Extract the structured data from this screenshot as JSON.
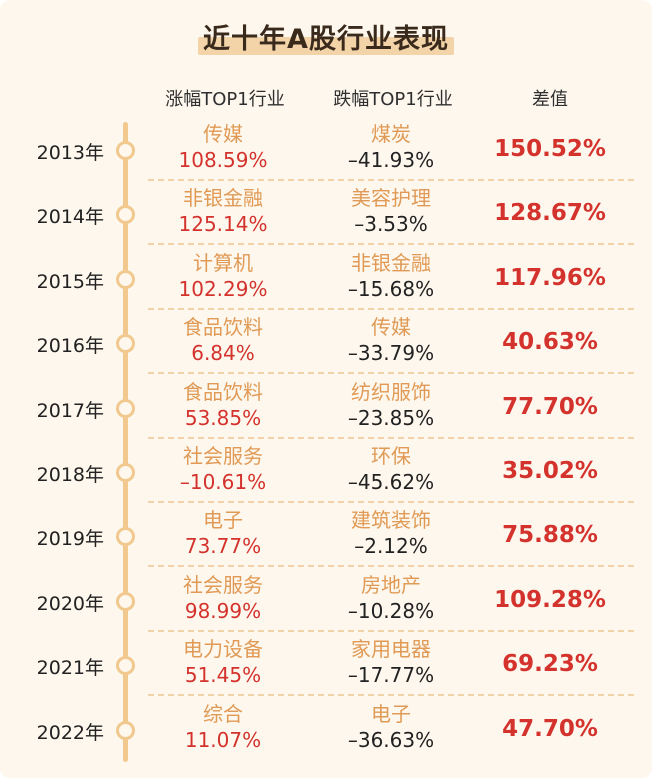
{
  "title": "近十年A股行业表现",
  "headers": {
    "rise": "涨幅TOP1行业",
    "fall": "跌幅TOP1行业",
    "diff": "差值"
  },
  "colors": {
    "background": "#fdf7ed",
    "timeline": "#f1c88e",
    "industry_name": "#e09a55",
    "rise_value": "#d4322d",
    "fall_value": "#222222",
    "diff_value": "#d4322d",
    "title_highlight": "#f3d4a8"
  },
  "chart_data": {
    "type": "table",
    "title": "近十年A股行业表现",
    "columns": [
      "涨幅TOP1行业",
      "跌幅TOP1行业",
      "差值"
    ],
    "rows": [
      {
        "year": "2013年",
        "rise_industry": "传媒",
        "rise_pct": "108.59%",
        "fall_industry": "煤炭",
        "fall_pct": "–41.93%",
        "diff": "150.52%"
      },
      {
        "year": "2014年",
        "rise_industry": "非银金融",
        "rise_pct": "125.14%",
        "fall_industry": "美容护理",
        "fall_pct": "–3.53%",
        "diff": "128.67%"
      },
      {
        "year": "2015年",
        "rise_industry": "计算机",
        "rise_pct": "102.29%",
        "fall_industry": "非银金融",
        "fall_pct": "–15.68%",
        "diff": "117.96%"
      },
      {
        "year": "2016年",
        "rise_industry": "食品饮料",
        "rise_pct": "6.84%",
        "fall_industry": "传媒",
        "fall_pct": "–33.79%",
        "diff": "40.63%"
      },
      {
        "year": "2017年",
        "rise_industry": "食品饮料",
        "rise_pct": "53.85%",
        "fall_industry": "纺织服饰",
        "fall_pct": "–23.85%",
        "diff": "77.70%"
      },
      {
        "year": "2018年",
        "rise_industry": "社会服务",
        "rise_pct": "–10.61%",
        "fall_industry": "环保",
        "fall_pct": "–45.62%",
        "diff": "35.02%"
      },
      {
        "year": "2019年",
        "rise_industry": "电子",
        "rise_pct": "73.77%",
        "fall_industry": "建筑装饰",
        "fall_pct": "–2.12%",
        "diff": "75.88%"
      },
      {
        "year": "2020年",
        "rise_industry": "社会服务",
        "rise_pct": "98.99%",
        "fall_industry": "房地产",
        "fall_pct": "–10.28%",
        "diff": "109.28%"
      },
      {
        "year": "2021年",
        "rise_industry": "电力设备",
        "rise_pct": "51.45%",
        "fall_industry": "家用电器",
        "fall_pct": "–17.77%",
        "diff": "69.23%"
      },
      {
        "year": "2022年",
        "rise_industry": "综合",
        "rise_pct": "11.07%",
        "fall_industry": "电子",
        "fall_pct": "–36.63%",
        "diff": "47.70%"
      }
    ]
  }
}
